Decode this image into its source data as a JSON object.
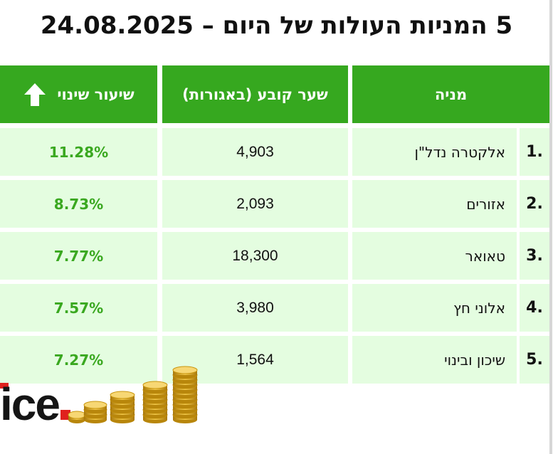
{
  "title": "5 המניות העולות של היום – 24.08.2025",
  "columns": {
    "stock": "מניה",
    "price": "שער קובע (באגורות)",
    "change": "שיעור שינוי"
  },
  "rows": [
    {
      "rank": "1.",
      "name": "אלקטרה נדל\"ן",
      "price": "4,903",
      "change": "11.28%"
    },
    {
      "rank": "2.",
      "name": "אזורים",
      "price": "2,093",
      "change": "8.73%"
    },
    {
      "rank": "3.",
      "name": "טאואר",
      "price": "18,300",
      "change": "7.77%"
    },
    {
      "rank": "4.",
      "name": "אלוני חץ",
      "price": "3,980",
      "change": "7.57%"
    },
    {
      "rank": "5.",
      "name": "שיכון ובינוי",
      "price": "1,564",
      "change": "7.27%"
    }
  ],
  "logo": {
    "text": "ice"
  },
  "colors": {
    "header_bg": "#36a81f",
    "row_bg": "#e4fde0",
    "change_text": "#3aa820",
    "logo_accent": "#e0211d"
  },
  "icons": {
    "change_header": "up-arrow-icon",
    "decoration": "gold-coins-icon"
  }
}
